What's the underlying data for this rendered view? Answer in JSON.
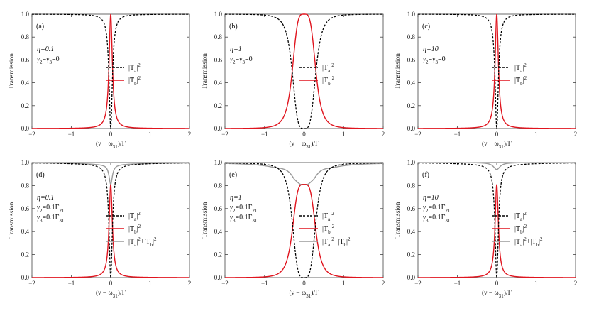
{
  "figure": {
    "background": "#ffffff",
    "colors": {
      "Ta": "#000000",
      "Tb": "#e0141e",
      "sum": "#9a9a9a",
      "axis": "#444444"
    }
  },
  "chart_data": [
    {
      "type": "line",
      "panel_label": "(a)",
      "ylabel": "Transmission",
      "xlabel_prefix": "(ν − ω",
      "xlabel_sub": "31",
      "xlabel_suffix": ")/Γ",
      "xlim": [
        -2,
        2
      ],
      "ylim": [
        0,
        1
      ],
      "xticks": [
        "−2",
        "−1",
        "0",
        "1",
        "2"
      ],
      "yticks": [
        "0.0",
        "0.2",
        "0.4",
        "0.6",
        "0.8",
        "1.0"
      ],
      "annotations": [
        {
          "main": "η=0.1"
        },
        {
          "main": "γ",
          "sub": "2",
          "tail": "=γ",
          "sub2": "3",
          "tail2": "=0"
        }
      ],
      "legend": [
        "|T_a|^2",
        "|T_b|^2"
      ],
      "params": {
        "eta": 0.1,
        "loss": 0
      },
      "series": [
        {
          "name": "|T_a|^2",
          "values": "1 - Tb (Lorentzian dip)",
          "color": "#000000",
          "dash": true
        },
        {
          "name": "|T_b|^2",
          "values": "Lorentzian peak, width ~0.05 at 0",
          "color": "#e0141e",
          "dash": false
        }
      ]
    },
    {
      "type": "line",
      "panel_label": "(b)",
      "ylabel": "Transmission",
      "xlabel_prefix": "(ν − ω",
      "xlabel_sub": "31",
      "xlabel_suffix": ")/Γ",
      "xlim": [
        -2,
        2
      ],
      "ylim": [
        0,
        1
      ],
      "xticks": [
        "−2",
        "−1",
        "0",
        "1",
        "2"
      ],
      "yticks": [
        "0.0",
        "0.2",
        "0.4",
        "0.6",
        "0.8",
        "1.0"
      ],
      "annotations": [
        {
          "main": "η=1"
        },
        {
          "main": "γ",
          "sub": "2",
          "tail": "=γ",
          "sub2": "3",
          "tail2": "=0"
        }
      ],
      "legend": [
        "|T_a|^2",
        "|T_b|^2"
      ],
      "params": {
        "eta": 1,
        "loss": 0
      },
      "series": [
        {
          "name": "|T_a|^2",
          "color": "#000000",
          "dash": true
        },
        {
          "name": "|T_b|^2",
          "color": "#e0141e",
          "dash": false
        }
      ]
    },
    {
      "type": "line",
      "panel_label": "(c)",
      "ylabel": "Transmission",
      "xlabel_prefix": "(ν − ω",
      "xlabel_sub": "31",
      "xlabel_suffix": ")/Γ",
      "xlim": [
        -2,
        2
      ],
      "ylim": [
        0,
        1
      ],
      "xticks": [
        "−2",
        "−1",
        "0",
        "1",
        "2"
      ],
      "yticks": [
        "0.0",
        "0.2",
        "0.4",
        "0.6",
        "0.8",
        "1.0"
      ],
      "annotations": [
        {
          "main": "η=10"
        },
        {
          "main": "γ",
          "sub": "2",
          "tail": "=γ",
          "sub2": "3",
          "tail2": "=0"
        }
      ],
      "legend": [
        "|T_a|^2",
        "|T_b|^2"
      ],
      "params": {
        "eta": 10,
        "loss": 0
      },
      "series": [
        {
          "name": "|T_a|^2",
          "color": "#000000",
          "dash": true
        },
        {
          "name": "|T_b|^2",
          "color": "#e0141e",
          "dash": false
        }
      ]
    },
    {
      "type": "line",
      "panel_label": "(d)",
      "ylabel": "Transmission",
      "xlabel_prefix": "(ν − ω",
      "xlabel_sub": "31",
      "xlabel_suffix": ")/Γ",
      "xlim": [
        -2,
        2
      ],
      "ylim": [
        0,
        1
      ],
      "xticks": [
        "−2",
        "−1",
        "0",
        "1",
        "2"
      ],
      "yticks": [
        "0.0",
        "0.2",
        "0.4",
        "0.6",
        "0.8",
        "1.0"
      ],
      "annotations": [
        {
          "main": "η=0.1"
        },
        {
          "main": "γ",
          "sub": "2",
          "tail": "=0.1Γ",
          "sub2": "21",
          "tail2": ""
        },
        {
          "main": "γ",
          "sub": "3",
          "tail": "=0.1Γ",
          "sub2": "31",
          "tail2": ""
        }
      ],
      "legend": [
        "|T_a|^2",
        "|T_b|^2",
        "|T_a|^2+|T_b|^2"
      ],
      "params": {
        "eta": 0.1,
        "loss": 0.1
      },
      "series": [
        {
          "name": "|T_a|^2",
          "color": "#000000",
          "dash": true
        },
        {
          "name": "|T_b|^2",
          "color": "#e0141e",
          "dash": false
        },
        {
          "name": "|T_a|^2+|T_b|^2",
          "color": "#9a9a9a",
          "dash": false
        }
      ]
    },
    {
      "type": "line",
      "panel_label": "(e)",
      "ylabel": "Transmission",
      "xlabel_prefix": "(ν − ω",
      "xlabel_sub": "31",
      "xlabel_suffix": ")/Γ",
      "xlim": [
        -2,
        2
      ],
      "ylim": [
        0,
        1
      ],
      "xticks": [
        "−2",
        "−1",
        "0",
        "1",
        "2"
      ],
      "yticks": [
        "0.0",
        "0.2",
        "0.4",
        "0.6",
        "0.8",
        "1.0"
      ],
      "annotations": [
        {
          "main": "η=1"
        },
        {
          "main": "γ",
          "sub": "2",
          "tail": "=0.1Γ",
          "sub2": "21",
          "tail2": ""
        },
        {
          "main": "γ",
          "sub": "3",
          "tail": "=0.1Γ",
          "sub2": "31",
          "tail2": ""
        }
      ],
      "legend": [
        "|T_a|^2",
        "|T_b|^2",
        "|T_a|^2+|T_b|^2"
      ],
      "params": {
        "eta": 1,
        "loss": 0.1
      },
      "series": [
        {
          "name": "|T_a|^2",
          "color": "#000000",
          "dash": true
        },
        {
          "name": "|T_b|^2",
          "color": "#e0141e",
          "dash": false
        },
        {
          "name": "|T_a|^2+|T_b|^2",
          "color": "#9a9a9a",
          "dash": false
        }
      ]
    },
    {
      "type": "line",
      "panel_label": "(f)",
      "ylabel": "Transmission",
      "xlabel_prefix": "(ν − ω",
      "xlabel_sub": "31",
      "xlabel_suffix": ")/Γ",
      "xlim": [
        -2,
        2
      ],
      "ylim": [
        0,
        1
      ],
      "xticks": [
        "−2",
        "−1",
        "0",
        "1",
        "2"
      ],
      "yticks": [
        "0.0",
        "0.2",
        "0.4",
        "0.6",
        "0.8",
        "1.0"
      ],
      "annotations": [
        {
          "main": "η=10"
        },
        {
          "main": "γ",
          "sub": "2",
          "tail": "=0.1Γ",
          "sub2": "21",
          "tail2": ""
        },
        {
          "main": "γ",
          "sub": "3",
          "tail": "=0.1Γ",
          "sub2": "31",
          "tail2": ""
        }
      ],
      "legend": [
        "|T_a|^2",
        "|T_b|^2",
        "|T_a|^2+|T_b|^2"
      ],
      "params": {
        "eta": 10,
        "loss": 0.1
      },
      "series": [
        {
          "name": "|T_a|^2",
          "color": "#000000",
          "dash": true
        },
        {
          "name": "|T_b|^2",
          "color": "#e0141e",
          "dash": false
        },
        {
          "name": "|T_a|^2+|T_b|^2",
          "color": "#9a9a9a",
          "dash": false
        }
      ]
    }
  ]
}
